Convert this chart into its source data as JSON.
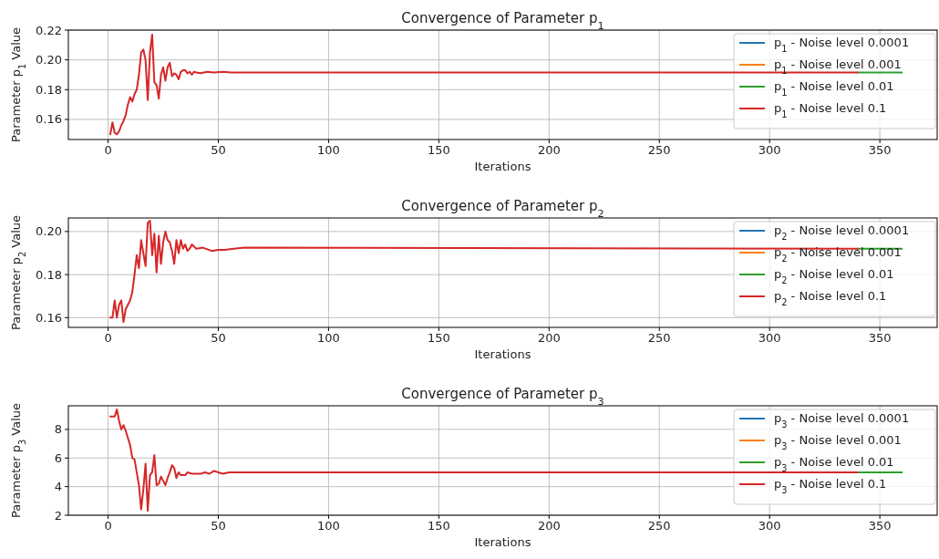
{
  "chart_data": [
    {
      "type": "line",
      "title": "Convergence of Parameter p$_{1}$",
      "xlabel": "Iterations",
      "ylabel": "Parameter p$_{1}$ Value",
      "xlim": [
        -18,
        376
      ],
      "xticks": [
        0,
        50,
        100,
        150,
        200,
        250,
        300,
        350
      ],
      "ylim": [
        0.1465,
        0.22
      ],
      "yticks": [
        0.16,
        0.18,
        {
          "value": 0.2,
          "label": "0.20"
        },
        0.22
      ],
      "grid": true,
      "legend": "top right",
      "line_style": "solid",
      "x": [
        1,
        2,
        3,
        4,
        5,
        6,
        7,
        8,
        9,
        10,
        11,
        12,
        13,
        14,
        15,
        16,
        17,
        18,
        19,
        20,
        21,
        22,
        23,
        24,
        25,
        26,
        27,
        28,
        29,
        30,
        31,
        32,
        33,
        34,
        35,
        36,
        37,
        38,
        39,
        40,
        42,
        45,
        48,
        52,
        56,
        340,
        360
      ],
      "series": [
        {
          "name": "p$_{1}$ - Noise level 0.0001",
          "color": "#1f77b4",
          "values": [
            null,
            null,
            null,
            null,
            null,
            null,
            null,
            null,
            null,
            null,
            null,
            null,
            null,
            null,
            null,
            null,
            null,
            null,
            null,
            null,
            null,
            null,
            null,
            null,
            null,
            null,
            null,
            null,
            null,
            null,
            null,
            null,
            null,
            null,
            null,
            null,
            null,
            null,
            null,
            null,
            null,
            null,
            null,
            null,
            null,
            null,
            null
          ]
        },
        {
          "name": "p$_{1}$ - Noise level 0.001",
          "color": "#ff7f0e",
          "values": [
            null,
            null,
            null,
            null,
            null,
            null,
            null,
            null,
            null,
            null,
            null,
            null,
            null,
            null,
            null,
            null,
            null,
            null,
            null,
            null,
            null,
            null,
            null,
            null,
            null,
            null,
            null,
            null,
            null,
            null,
            null,
            null,
            null,
            null,
            null,
            null,
            null,
            null,
            null,
            null,
            null,
            null,
            null,
            null,
            null,
            null,
            null
          ]
        },
        {
          "name": "p$_{1}$ - Noise level 0.01",
          "color": "#2ca02c",
          "values": [
            null,
            null,
            null,
            null,
            null,
            null,
            null,
            null,
            null,
            null,
            null,
            null,
            null,
            null,
            null,
            null,
            null,
            null,
            null,
            null,
            null,
            null,
            null,
            null,
            null,
            null,
            null,
            null,
            null,
            null,
            null,
            null,
            null,
            null,
            null,
            null,
            null,
            null,
            null,
            null,
            null,
            null,
            null,
            null,
            null,
            0.1915,
            0.1915
          ]
        },
        {
          "name": "p$_{1}$ - Noise level 0.1",
          "color": "#d62728",
          "values": [
            0.15,
            0.158,
            0.151,
            0.15,
            0.152,
            0.156,
            0.159,
            0.163,
            0.17,
            0.175,
            0.172,
            0.177,
            0.18,
            0.19,
            0.205,
            0.207,
            0.2,
            0.173,
            0.205,
            0.217,
            0.185,
            0.183,
            0.174,
            0.19,
            0.195,
            0.186,
            0.195,
            0.198,
            0.189,
            0.191,
            0.19,
            0.187,
            0.192,
            0.193,
            0.193,
            0.191,
            0.192,
            0.19,
            0.192,
            0.1915,
            0.191,
            0.192,
            0.1915,
            0.192,
            0.1915,
            0.1915,
            null
          ]
        }
      ]
    },
    {
      "type": "line",
      "title": "Convergence of Parameter p$_{2}$",
      "xlabel": "Iterations",
      "ylabel": "Parameter p$_{2}$ Value",
      "xlim": [
        -18,
        376
      ],
      "xticks": [
        0,
        50,
        100,
        150,
        200,
        250,
        300,
        350
      ],
      "ylim": [
        0.1555,
        0.2063
      ],
      "yticks": [
        0.16,
        0.18,
        {
          "value": 0.2,
          "label": "0.20"
        }
      ],
      "grid": true,
      "legend": "top right",
      "line_style": "solid",
      "x": [
        1,
        2,
        3,
        4,
        5,
        6,
        7,
        8,
        9,
        10,
        11,
        12,
        13,
        14,
        15,
        16,
        17,
        18,
        19,
        20,
        21,
        22,
        23,
        24,
        25,
        26,
        27,
        28,
        29,
        30,
        31,
        32,
        33,
        34,
        35,
        36,
        37,
        38,
        40,
        43,
        47,
        50,
        53,
        57,
        62,
        340,
        360
      ],
      "series": [
        {
          "name": "p$_{2}$ - Noise level 0.0001",
          "color": "#1f77b4",
          "values": [
            null,
            null,
            null,
            null,
            null,
            null,
            null,
            null,
            null,
            null,
            null,
            null,
            null,
            null,
            null,
            null,
            null,
            null,
            null,
            null,
            null,
            null,
            null,
            null,
            null,
            null,
            null,
            null,
            null,
            null,
            null,
            null,
            null,
            null,
            null,
            null,
            null,
            null,
            null,
            null,
            null,
            null,
            null,
            null,
            null,
            null,
            null
          ]
        },
        {
          "name": "p$_{2}$ - Noise level 0.001",
          "color": "#ff7f0e",
          "values": [
            null,
            null,
            null,
            null,
            null,
            null,
            null,
            null,
            null,
            null,
            null,
            null,
            null,
            null,
            null,
            null,
            null,
            null,
            null,
            null,
            null,
            null,
            null,
            null,
            null,
            null,
            null,
            null,
            null,
            null,
            null,
            null,
            null,
            null,
            null,
            null,
            null,
            null,
            null,
            null,
            null,
            null,
            null,
            null,
            null,
            null,
            null
          ]
        },
        {
          "name": "p$_{2}$ - Noise level 0.01",
          "color": "#2ca02c",
          "values": [
            null,
            null,
            null,
            null,
            null,
            null,
            null,
            null,
            null,
            null,
            null,
            null,
            null,
            null,
            null,
            null,
            null,
            null,
            null,
            null,
            null,
            null,
            null,
            null,
            null,
            null,
            null,
            null,
            null,
            null,
            null,
            null,
            null,
            null,
            null,
            null,
            null,
            null,
            null,
            null,
            null,
            null,
            null,
            null,
            null,
            0.192,
            0.192
          ]
        },
        {
          "name": "p$_{2}$ - Noise level 0.1",
          "color": "#d62728",
          "values": [
            0.16,
            0.16,
            0.168,
            0.16,
            0.166,
            0.168,
            0.158,
            0.164,
            0.166,
            0.168,
            0.172,
            0.18,
            0.189,
            0.183,
            0.196,
            0.19,
            0.184,
            0.204,
            0.205,
            0.189,
            0.199,
            0.181,
            0.198,
            0.185,
            0.195,
            0.2,
            0.196,
            0.195,
            0.191,
            0.185,
            0.196,
            0.19,
            0.196,
            0.192,
            0.194,
            0.191,
            0.192,
            0.194,
            0.192,
            0.1925,
            0.191,
            0.1915,
            0.1915,
            0.192,
            0.1925,
            0.192,
            null
          ]
        }
      ]
    },
    {
      "type": "line",
      "title": "Convergence of Parameter p$_{3}$",
      "xlabel": "Iterations",
      "ylabel": "Parameter p$_{3}$ Value",
      "xlim": [
        -18,
        376
      ],
      "xticks": [
        0,
        50,
        100,
        150,
        200,
        250,
        300,
        350
      ],
      "ylim": [
        2,
        9.65
      ],
      "yticks": [
        2,
        4,
        6,
        8
      ],
      "grid": true,
      "legend": "top right",
      "line_style": "solid",
      "x": [
        1,
        2,
        3,
        4,
        5,
        6,
        7,
        8,
        9,
        10,
        11,
        12,
        13,
        14,
        15,
        16,
        17,
        18,
        19,
        20,
        21,
        22,
        23,
        24,
        25,
        26,
        27,
        28,
        29,
        30,
        31,
        32,
        33,
        35,
        36,
        38,
        42,
        44,
        46,
        48,
        50,
        52,
        55,
        340,
        360
      ],
      "series": [
        {
          "name": "p$_{3}$ - Noise level 0.0001",
          "color": "#1f77b4",
          "values": [
            null,
            null,
            null,
            null,
            null,
            null,
            null,
            null,
            null,
            null,
            null,
            null,
            null,
            null,
            null,
            null,
            null,
            null,
            null,
            null,
            null,
            null,
            null,
            null,
            null,
            null,
            null,
            null,
            null,
            null,
            null,
            null,
            null,
            null,
            null,
            null,
            null,
            null,
            null,
            null,
            null,
            null,
            null,
            null,
            null
          ]
        },
        {
          "name": "p$_{3}$ - Noise level 0.001",
          "color": "#ff7f0e",
          "values": [
            null,
            null,
            null,
            null,
            null,
            null,
            null,
            null,
            null,
            null,
            null,
            null,
            null,
            null,
            null,
            null,
            null,
            null,
            null,
            null,
            null,
            null,
            null,
            null,
            null,
            null,
            null,
            null,
            null,
            null,
            null,
            null,
            null,
            null,
            null,
            null,
            null,
            null,
            null,
            null,
            null,
            null,
            null,
            null,
            null
          ]
        },
        {
          "name": "p$_{3}$ - Noise level 0.01",
          "color": "#2ca02c",
          "values": [
            null,
            null,
            null,
            null,
            null,
            null,
            null,
            null,
            null,
            null,
            null,
            null,
            null,
            null,
            null,
            null,
            null,
            null,
            null,
            null,
            null,
            null,
            null,
            null,
            null,
            null,
            null,
            null,
            null,
            null,
            null,
            null,
            null,
            null,
            null,
            null,
            null,
            null,
            null,
            null,
            null,
            null,
            null,
            5.0,
            5.0
          ]
        },
        {
          "name": "p$_{3}$ - Noise level 0.1",
          "color": "#d62728",
          "values": [
            8.9,
            8.9,
            8.9,
            9.4,
            8.6,
            8.0,
            8.3,
            7.9,
            7.4,
            6.9,
            6.0,
            5.9,
            5.0,
            4.1,
            2.4,
            3.8,
            5.6,
            2.3,
            4.8,
            5.0,
            6.2,
            4.1,
            4.2,
            4.7,
            4.4,
            4.1,
            4.6,
            5.0,
            5.5,
            5.3,
            4.6,
            5.0,
            4.8,
            4.8,
            5.0,
            4.9,
            4.9,
            5.0,
            4.9,
            5.1,
            5.0,
            4.9,
            5.0,
            5.0,
            null
          ]
        }
      ]
    }
  ]
}
